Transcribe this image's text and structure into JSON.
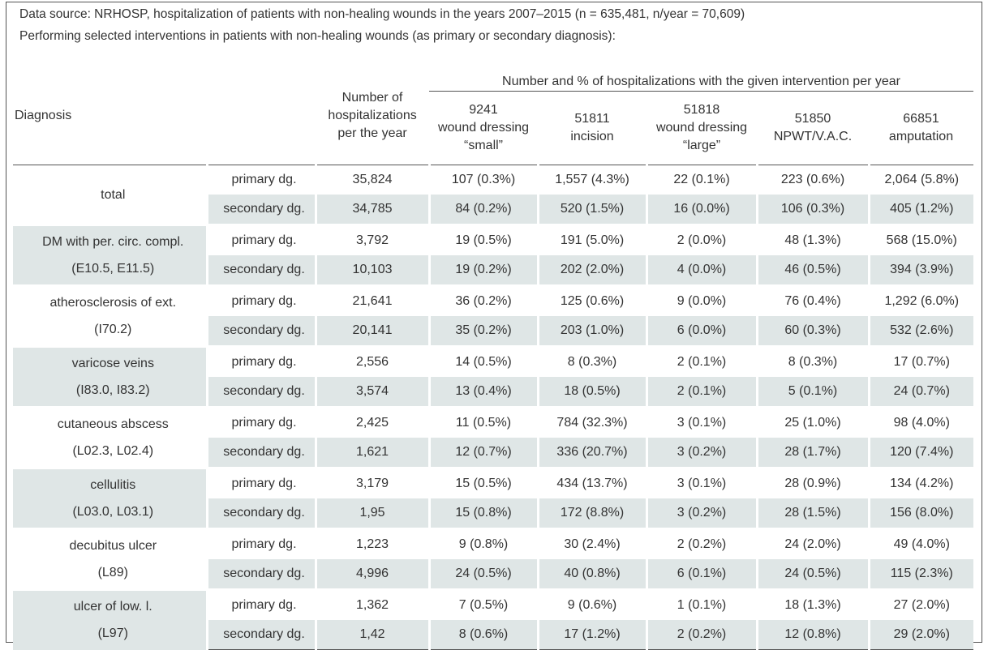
{
  "caption": {
    "line1": "Data source: NRHOSP, hospitalization of patients with non-healing wounds in the years 2007–2015 (n = 635,481, n/year = 70,609)",
    "line2": "Performing selected interventions in patients with non-healing wounds (as primary or secondary diagnosis):"
  },
  "header": {
    "diagnosis": "Diagnosis",
    "hosp_count_label": "Number of hospitalizations per the year",
    "group_label": "Number and % of hospitalizations with the given intervention per year",
    "interventions": [
      {
        "code": "9241",
        "name": "wound dressing “small”"
      },
      {
        "code": "51811",
        "name": "incision"
      },
      {
        "code": "51818",
        "name": "wound dressing “large”"
      },
      {
        "code": "51850",
        "name": "NPWT/V.A.C."
      },
      {
        "code": "66851",
        "name": "amputation"
      }
    ]
  },
  "rows": [
    {
      "diag": "total",
      "code": "",
      "primary": [
        "primary dg.",
        "35,824",
        "107 (0.3%)",
        "1,557 (4.3%)",
        "22 (0.1%)",
        "223 (0.6%)",
        "2,064 (5.8%)"
      ],
      "secondary": [
        "secondary dg.",
        "34,785",
        "84 (0.2%)",
        "520 (1.5%)",
        "16 (0.0%)",
        "106 (0.3%)",
        "405 (1.2%)"
      ]
    },
    {
      "diag": "DM with per. circ. compl.",
      "code": "(E10.5, E11.5)",
      "primary": [
        "primary dg.",
        "3,792",
        "19 (0.5%)",
        "191 (5.0%)",
        "2 (0.0%)",
        "48 (1.3%)",
        "568 (15.0%)"
      ],
      "secondary": [
        "secondary dg.",
        "10,103",
        "19 (0.2%)",
        "202 (2.0%)",
        "4 (0.0%)",
        "46 (0.5%)",
        "394 (3.9%)"
      ]
    },
    {
      "diag": "atherosclerosis of ext.",
      "code": "(I70.2)",
      "primary": [
        "primary dg.",
        "21,641",
        "36 (0.2%)",
        "125 (0.6%)",
        "9 (0.0%)",
        "76 (0.4%)",
        "1,292 (6.0%)"
      ],
      "secondary": [
        "secondary dg.",
        "20,141",
        "35 (0.2%)",
        "203 (1.0%)",
        "6 (0.0%)",
        "60 (0.3%)",
        "532 (2.6%)"
      ]
    },
    {
      "diag": "varicose veins",
      "code": "(I83.0, I83.2)",
      "primary": [
        "primary dg.",
        "2,556",
        "14 (0.5%)",
        "8 (0.3%)",
        "2 (0.1%)",
        "8 (0.3%)",
        "17 (0.7%)"
      ],
      "secondary": [
        "secondary dg.",
        "3,574",
        "13 (0.4%)",
        "18 (0.5%)",
        "2 (0.1%)",
        "5 (0.1%)",
        "24 (0.7%)"
      ]
    },
    {
      "diag": "cutaneous abscess",
      "code": "(L02.3, L02.4)",
      "primary": [
        "primary dg.",
        "2,425",
        "11 (0.5%)",
        "784 (32.3%)",
        "3 (0.1%)",
        "25 (1.0%)",
        "98 (4.0%)"
      ],
      "secondary": [
        "secondary dg.",
        "1,621",
        "12 (0.7%)",
        "336 (20.7%)",
        "3 (0.2%)",
        "28 (1.7%)",
        "120 (7.4%)"
      ]
    },
    {
      "diag": "cellulitis",
      "code": "(L03.0, L03.1)",
      "primary": [
        "primary dg.",
        "3,179",
        "15 (0.5%)",
        "434 (13.7%)",
        "3 (0.1%)",
        "28 (0.9%)",
        "134 (4.2%)"
      ],
      "secondary": [
        "secondary dg.",
        "1,95",
        "15 (0.8%)",
        "172 (8.8%)",
        "3 (0.2%)",
        "28 (1.5%)",
        "156 (8.0%)"
      ]
    },
    {
      "diag": "decubitus ulcer",
      "code": "(L89)",
      "primary": [
        "primary dg.",
        "1,223",
        "9 (0.8%)",
        "30 (2.4%)",
        "2 (0.2%)",
        "24 (2.0%)",
        "49 (4.0%)"
      ],
      "secondary": [
        "secondary dg.",
        "4,996",
        "24 (0.5%)",
        "40 (0.8%)",
        "6 (0.1%)",
        "24 (0.5%)",
        "115 (2.3%)"
      ]
    },
    {
      "diag": "ulcer of low. l.",
      "code": "(L97)",
      "primary": [
        "primary dg.",
        "1,362",
        "7 (0.5%)",
        "9 (0.6%)",
        "1 (0.1%)",
        "18 (1.3%)",
        "27 (2.0%)"
      ],
      "secondary": [
        "secondary dg.",
        "1,42",
        "8 (0.6%)",
        "17 (1.2%)",
        "2 (0.2%)",
        "12 (0.8%)",
        "29 (2.0%)"
      ]
    }
  ]
}
